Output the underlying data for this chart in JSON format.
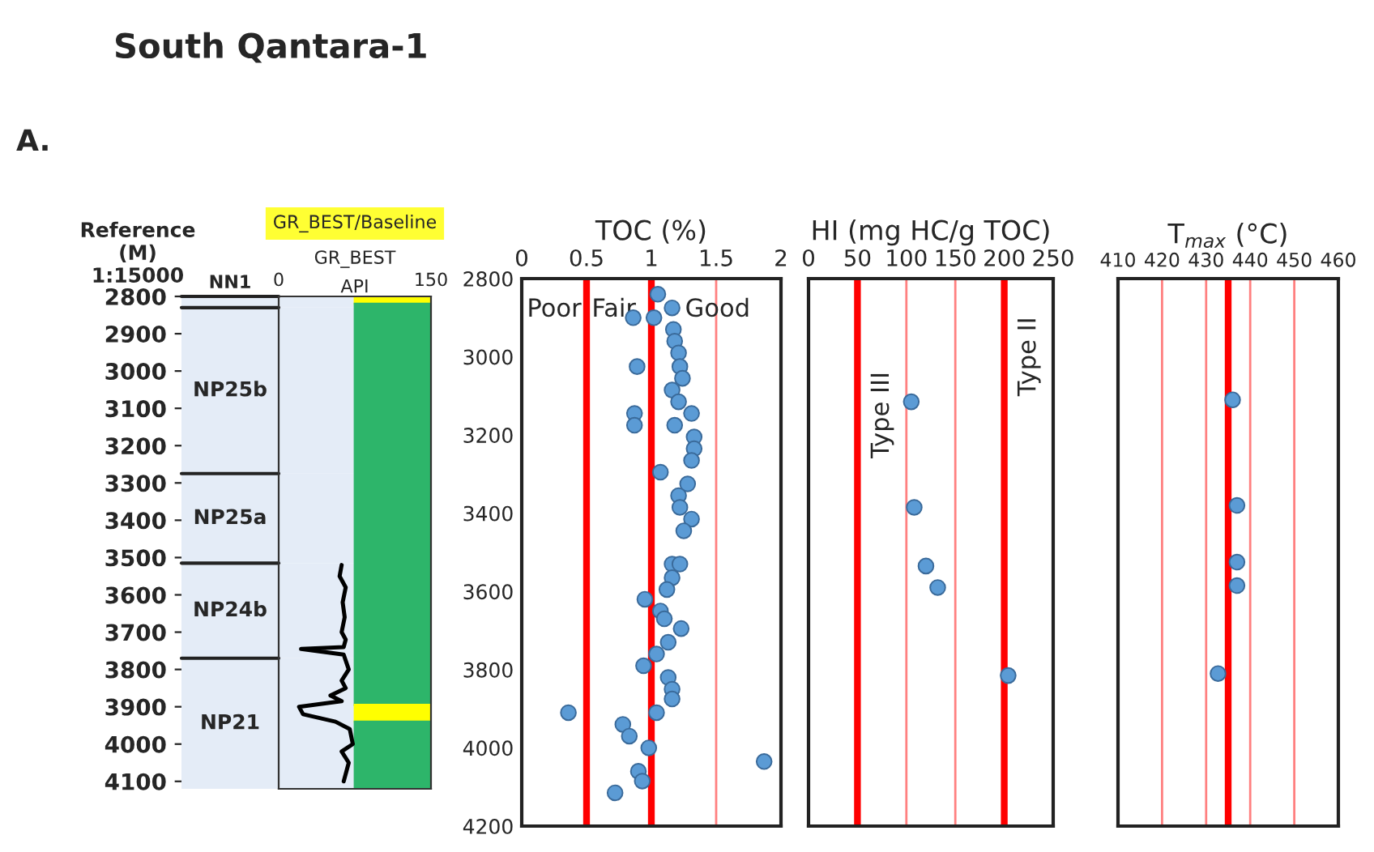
{
  "chart_data": [
    {
      "type": "line",
      "title": "South Qantara-1",
      "subtitle": "GR_BEST/Baseline",
      "annotations": [
        "A."
      ],
      "xlabel": "API",
      "ylabel": "Reference\n(M)\n1:15000",
      "xlim": [
        0,
        150
      ],
      "xticks": [
        0,
        150
      ],
      "ylim": [
        4120,
        2800
      ],
      "yticks": [
        2800,
        2900,
        3000,
        3100,
        3200,
        3300,
        3400,
        3500,
        3600,
        3700,
        3800,
        3900,
        4000,
        4100
      ],
      "legend": "top",
      "series": [
        {
          "name": "GR_BEST",
          "color": "#000000",
          "x": [
            62,
            60,
            66,
            63,
            65,
            62,
            66,
            64,
            22,
            64,
            69,
            62,
            66,
            51,
            62,
            20,
            24,
            56,
            70,
            73,
            62,
            69,
            64
          ],
          "values": [
            3520,
            3550,
            3580,
            3620,
            3660,
            3700,
            3720,
            3740,
            3745,
            3760,
            3800,
            3830,
            3850,
            3870,
            3885,
            3900,
            3920,
            3940,
            3960,
            4000,
            4020,
            4050,
            4100
          ]
        }
      ],
      "bands": [
        {
          "axis": "y",
          "from": 2800,
          "to": 2830,
          "label": "NN1"
        },
        {
          "axis": "y",
          "from": 2830,
          "to": 3275,
          "label": "NP25b"
        },
        {
          "axis": "y",
          "from": 3275,
          "to": 3515,
          "label": "NP25a"
        },
        {
          "axis": "y",
          "from": 3515,
          "to": 3770,
          "label": "NP24b"
        },
        {
          "axis": "y",
          "from": 3770,
          "to": 4120,
          "label": "NP21"
        },
        {
          "axis": "y",
          "from": 2800,
          "to": 2820,
          "color": "#ffff00"
        },
        {
          "axis": "y",
          "from": 2820,
          "to": 3895,
          "color": "#2db56a"
        },
        {
          "axis": "y",
          "from": 3895,
          "to": 3940,
          "color": "#ffff00"
        },
        {
          "axis": "y",
          "from": 3940,
          "to": 4120,
          "color": "#2db56a"
        }
      ]
    },
    {
      "type": "scatter",
      "xlabel": "TOC (%)",
      "xlim": [
        0,
        2
      ],
      "xticks": [
        0,
        0.5,
        1,
        1.5,
        2
      ],
      "ylim": [
        4200,
        2800
      ],
      "yticks": [
        2800,
        3000,
        3200,
        3400,
        3600,
        3800,
        4000,
        4200
      ],
      "marker": "circle",
      "series": [
        {
          "color": "#5b9bd5",
          "x": [
            1.05,
            1.16,
            0.86,
            1.02,
            1.17,
            1.18,
            1.21,
            1.22,
            0.89,
            1.24,
            1.16,
            1.21,
            0.87,
            1.31,
            0.87,
            1.18,
            1.33,
            1.33,
            1.31,
            1.07,
            1.28,
            1.21,
            1.22,
            1.31,
            1.25,
            1.16,
            1.22,
            1.16,
            1.12,
            0.95,
            1.07,
            1.1,
            1.23,
            1.13,
            1.04,
            0.94,
            1.13,
            1.16,
            1.16,
            0.36,
            1.04,
            0.78,
            0.83,
            0.98,
            1.87,
            0.9,
            0.93,
            0.72
          ],
          "values": [
            2840,
            2875,
            2900,
            2900,
            2930,
            2960,
            2990,
            3025,
            3025,
            3055,
            3085,
            3115,
            3145,
            3145,
            3175,
            3175,
            3205,
            3235,
            3265,
            3295,
            3325,
            3355,
            3385,
            3415,
            3445,
            3530,
            3530,
            3565,
            3595,
            3620,
            3650,
            3670,
            3695,
            3730,
            3760,
            3790,
            3820,
            3850,
            3875,
            3910,
            3910,
            3940,
            3970,
            4000,
            4035,
            4060,
            4085,
            4115
          ]
        }
      ],
      "ref_lines": [
        {
          "axis": "x",
          "value": 0.5,
          "color": "#ff0000"
        },
        {
          "axis": "x",
          "value": 1,
          "color": "#ff0000"
        },
        {
          "axis": "x",
          "value": 1.5,
          "color": "#ff8080"
        }
      ],
      "annotations": [
        "Poor",
        "Fair",
        "Good"
      ]
    },
    {
      "type": "scatter",
      "xlabel": "HI (mg HC/g TOC)",
      "xlim": [
        0,
        250
      ],
      "xticks": [
        0,
        50,
        100,
        150,
        200,
        250
      ],
      "ylim": [
        4200,
        2800
      ],
      "tick_labels": "x",
      "marker": "circle",
      "series": [
        {
          "color": "#5b9bd5",
          "x": [
            105,
            108,
            120,
            132,
            204
          ],
          "values": [
            3115,
            3385,
            3535,
            3590,
            3815
          ]
        }
      ],
      "ref_lines": [
        {
          "axis": "x",
          "value": 50,
          "color": "#ff0000"
        },
        {
          "axis": "x",
          "value": 100,
          "color": "#ff8080"
        },
        {
          "axis": "x",
          "value": 150,
          "color": "#ff8080"
        },
        {
          "axis": "x",
          "value": 200,
          "color": "#ff0000"
        }
      ],
      "annotations": [
        "Type III",
        "Type II"
      ]
    },
    {
      "type": "scatter",
      "xlabel": "T$_{max}$ (°C)",
      "xlim": [
        410,
        460
      ],
      "xticks": [
        410,
        420,
        430,
        440,
        450,
        460
      ],
      "ylim": [
        4200,
        2800
      ],
      "tick_labels": "x",
      "marker": "circle",
      "series": [
        {
          "color": "#5b9bd5",
          "x": [
            436,
            437,
            437,
            437,
            432.7
          ],
          "values": [
            3110,
            3380,
            3525,
            3585,
            3810
          ]
        }
      ],
      "ref_lines": [
        {
          "axis": "x",
          "value": 420,
          "color": "#ff8080"
        },
        {
          "axis": "x",
          "value": 430,
          "color": "#ff8080"
        },
        {
          "axis": "x",
          "value": 435,
          "color": "#ff0000"
        },
        {
          "axis": "x",
          "value": 440,
          "color": "#ff8080"
        },
        {
          "axis": "x",
          "value": 450,
          "color": "#ff8080"
        }
      ]
    }
  ]
}
